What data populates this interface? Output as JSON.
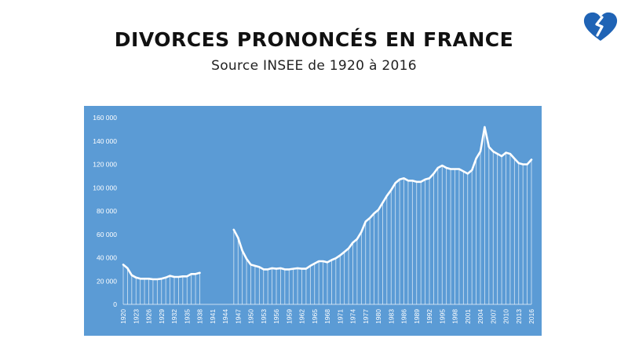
{
  "title": "DIVORCES PRONONCÉS EN FRANCE",
  "subtitle": "Source INSEE de 1920 à 2016",
  "colors": {
    "panel": "#5b9bd5",
    "line": "#ffffff",
    "logo": "#1f63b5",
    "title": "#111111"
  },
  "logo_icon": "broken-heart-icon",
  "chart_data": {
    "type": "area",
    "title": "DIVORCES PRONONCÉS EN FRANCE",
    "subtitle": "Source INSEE de 1920 à 2016",
    "xlabel": "",
    "ylabel": "",
    "ylim": [
      0,
      160000
    ],
    "yticks": [
      0,
      20000,
      40000,
      60000,
      80000,
      100000,
      120000,
      140000,
      160000
    ],
    "ytick_labels": [
      "0",
      "20 000",
      "40 000",
      "60 000",
      "80 000",
      "100 000",
      "120 000",
      "140 000",
      "160 000"
    ],
    "xlim": [
      1920,
      2016
    ],
    "xtick_labels": [
      "1920",
      "1923",
      "1926",
      "1929",
      "1932",
      "1935",
      "1938",
      "1941",
      "1944",
      "1947",
      "1950",
      "1953",
      "1956",
      "1959",
      "1962",
      "1965",
      "1968",
      "1971",
      "1974",
      "1977",
      "1980",
      "1983",
      "1986",
      "1989",
      "1992",
      "1995",
      "1998",
      "2001",
      "2004",
      "2007",
      "2010",
      "2013",
      "2016"
    ],
    "grid": false,
    "legend": "none",
    "segments": [
      {
        "x": [
          1920,
          1921,
          1922,
          1923,
          1924,
          1925,
          1926,
          1927,
          1928,
          1929,
          1930,
          1931,
          1932,
          1933,
          1934,
          1935,
          1936,
          1937,
          1938
        ],
        "y": [
          34000,
          31000,
          25000,
          23000,
          22000,
          22000,
          22000,
          21500,
          21500,
          22000,
          23000,
          24500,
          23500,
          23500,
          24000,
          24000,
          26000,
          26000,
          27000
        ]
      },
      {
        "x": [
          1946,
          1947,
          1948,
          1949,
          1950,
          1951,
          1952,
          1953,
          1954,
          1955,
          1956,
          1957,
          1958,
          1959,
          1960,
          1961,
          1962,
          1963,
          1964,
          1965,
          1966,
          1967,
          1968,
          1969,
          1970,
          1971,
          1972,
          1973,
          1974,
          1975,
          1976,
          1977,
          1978,
          1979,
          1980,
          1981,
          1982,
          1983,
          1984,
          1985,
          1986,
          1987,
          1988,
          1989,
          1990,
          1991,
          1992,
          1993,
          1994,
          1995,
          1996,
          1997,
          1998,
          1999,
          2000,
          2001,
          2002,
          2003,
          2004,
          2005,
          2006,
          2007,
          2008,
          2009,
          2010,
          2011,
          2012,
          2013,
          2014,
          2015,
          2016
        ],
        "y": [
          64000,
          57000,
          46000,
          39000,
          34000,
          33000,
          32000,
          30000,
          30000,
          31000,
          30500,
          31000,
          30000,
          30000,
          30500,
          31000,
          30500,
          30500,
          33000,
          35000,
          37000,
          37000,
          36000,
          38000,
          39500,
          42000,
          45000,
          48000,
          53000,
          56000,
          62000,
          71000,
          74000,
          78000,
          81000,
          87000,
          93000,
          98000,
          104000,
          107000,
          108000,
          106000,
          106000,
          105000,
          105000,
          107000,
          108000,
          112000,
          117000,
          119000,
          117000,
          116000,
          116000,
          116000,
          114000,
          112000,
          115000,
          125000,
          131000,
          152000,
          135000,
          131000,
          129000,
          127000,
          130000,
          129000,
          125000,
          121000,
          120000,
          120000,
          124000
        ]
      }
    ]
  }
}
